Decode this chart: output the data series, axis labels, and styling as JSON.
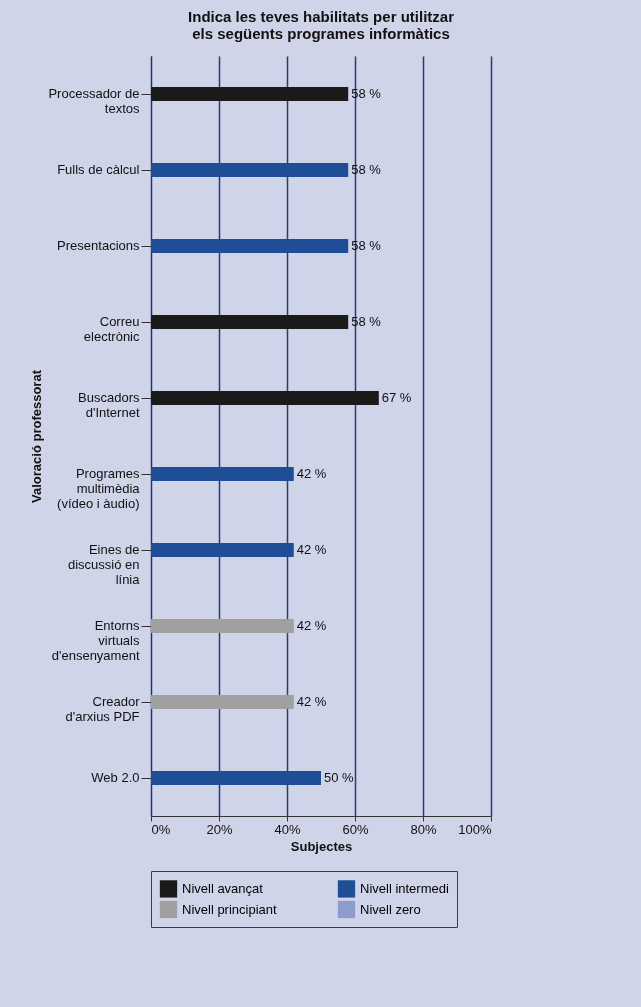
{
  "chart_data": {
    "type": "bar",
    "orientation": "horizontal",
    "title": "Indica les teves habilitats per utilitzar els següents programes informàtics",
    "xlabel": "Subjectes",
    "ylabel": "Valoració professorat",
    "categories": [
      "Processador de textos",
      "Fulls de càlcul",
      "Presentacions",
      "Correu electrònic",
      "Buscadors d'Internet",
      "Programes multimèdia (vídeo i àudio)",
      "Eines de discussió en línia",
      "Entorns virtuals d'ensenyament",
      "Creador d'arxius PDF",
      "Web 2.0"
    ],
    "series": [
      {
        "name": "Nivell avançat",
        "color": "#1a1a1a",
        "values": [
          58,
          null,
          null,
          58,
          67,
          null,
          null,
          null,
          null,
          null
        ],
        "value_labels": [
          "58 %",
          null,
          null,
          "58 %",
          "67 %",
          null,
          null,
          null,
          null,
          null
        ]
      },
      {
        "name": "Nivell intermedi",
        "color": "#1f4e96",
        "values": [
          null,
          58,
          58,
          null,
          null,
          42,
          42,
          null,
          null,
          50
        ],
        "value_labels": [
          null,
          "58 %",
          "58 %",
          null,
          null,
          "42 %",
          "42 %",
          null,
          null,
          "50 %"
        ]
      },
      {
        "name": "Nivell principiant",
        "color": "#a0a0a0",
        "values": [
          null,
          null,
          null,
          null,
          null,
          null,
          null,
          42,
          42,
          null
        ],
        "value_labels": [
          null,
          null,
          null,
          null,
          null,
          null,
          null,
          "42 %",
          "42 %",
          null
        ]
      },
      {
        "name": "Nivell zero",
        "color": "#8c9ccc",
        "values": [
          null,
          null,
          null,
          null,
          null,
          null,
          null,
          null,
          null,
          null
        ]
      }
    ],
    "xlim": [
      0,
      100
    ],
    "xticks": [
      {
        "value": 0,
        "label": "0%"
      },
      {
        "value": 20,
        "label": "20%"
      },
      {
        "value": 40,
        "label": "40%"
      },
      {
        "value": 60,
        "label": "60%"
      },
      {
        "value": 80,
        "label": "80%"
      },
      {
        "value": 100,
        "label": "100%"
      }
    ],
    "grid": "x",
    "legend": "bottom"
  }
}
